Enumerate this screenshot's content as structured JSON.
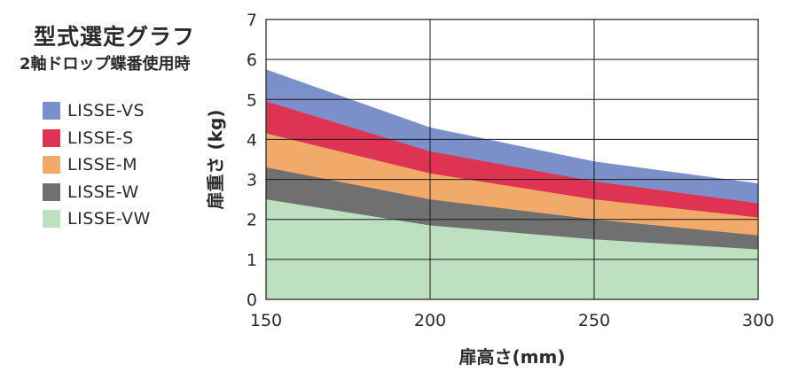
{
  "chart_data": {
    "type": "area",
    "stacked": false,
    "title": "型式選定グラフ",
    "subtitle": "2軸ドロップ蝶番使用時",
    "xlabel": "扉高さ(mm)",
    "ylabel": "扉重さ (kg)",
    "x": [
      150,
      200,
      250,
      300
    ],
    "xlim": [
      150,
      300
    ],
    "ylim": [
      0,
      7
    ],
    "xticks": [
      "150",
      "200",
      "250",
      "300"
    ],
    "yticks": [
      "0",
      "1",
      "2",
      "3",
      "4",
      "5",
      "6",
      "7"
    ],
    "grid": true,
    "legend_position": "left",
    "series": [
      {
        "name": "LISSE-VS",
        "color": "#7b8fc9",
        "values": [
          5.75,
          4.3,
          3.45,
          2.9
        ]
      },
      {
        "name": "LISSE-S",
        "color": "#de3352",
        "values": [
          4.95,
          3.7,
          2.95,
          2.4
        ]
      },
      {
        "name": "LISSE-M",
        "color": "#f1aa6a",
        "values": [
          4.15,
          3.15,
          2.5,
          2.05
        ]
      },
      {
        "name": "LISSE-W",
        "color": "#707070",
        "values": [
          3.3,
          2.5,
          2.0,
          1.6
        ]
      },
      {
        "name": "LISSE-VW",
        "color": "#bde0c1",
        "values": [
          2.5,
          1.85,
          1.5,
          1.25
        ]
      }
    ]
  }
}
